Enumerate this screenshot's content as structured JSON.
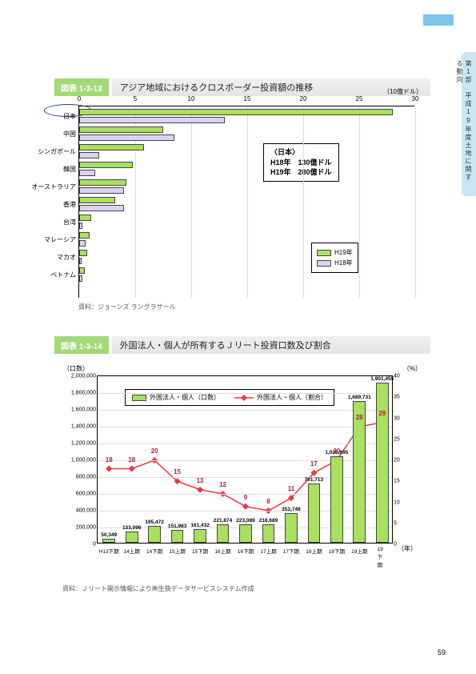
{
  "sidetab": "第１部　平成19年度土地に関する動向",
  "pagenum": "59",
  "sec1": {
    "label": "図表 1-3-13",
    "title": "アジア地域におけるクロスボーダー投資額の推移",
    "units": "（10億ドル）",
    "xmax": 30,
    "xticks": [
      0,
      5,
      10,
      15,
      20,
      25,
      30
    ],
    "categories": [
      "日本",
      "中国",
      "シンガポール",
      "韓国",
      "オーストラリア",
      "香港",
      "台湾",
      "マレーシア",
      "マカオ",
      "ベトナム"
    ],
    "h19": [
      28,
      7.5,
      5.8,
      4.8,
      4.2,
      3.2,
      1.1,
      0.9,
      0.7,
      0.5
    ],
    "h18": [
      13,
      8.5,
      1.8,
      1.4,
      4.0,
      4.0,
      0.3,
      0.6,
      0.2,
      0.3
    ],
    "colors": {
      "h19": "#a8e060",
      "h18": "#d8d4f0"
    },
    "annot": {
      "line1": "〈日本〉",
      "line2": "H18年　130億ドル",
      "line3": "H19年　280億ドル"
    },
    "legend": {
      "h19": "H19年",
      "h18": "H18年"
    },
    "source": "資料：ジョーンズ ラングラサール"
  },
  "sec2": {
    "label": "図表 1-3-14",
    "title": "外国法人・個人が所有するＪリート投資口数及び割合",
    "yl_label": "（口数）",
    "yr_label": "（%）",
    "yl_max": 2000000,
    "yl_ticks": [
      0,
      200000,
      400000,
      600000,
      800000,
      1000000,
      1200000,
      1400000,
      1600000,
      1800000,
      2000000
    ],
    "yl_tick_labels": [
      "0",
      "200,000",
      "400,000",
      "600,000",
      "800,000",
      "1,000,000",
      "1,200,000",
      "1,400,000",
      "1,600,000",
      "1,800,000",
      "2,000,000"
    ],
    "yr_max": 40,
    "yr_ticks": [
      0,
      5,
      10,
      15,
      20,
      25,
      30,
      35,
      40
    ],
    "xlabels": [
      "H13下期",
      "14上期",
      "14下期",
      "15上期",
      "15下期",
      "16上期",
      "16下期",
      "17上期",
      "17下期",
      "18上期",
      "18下期",
      "19上期",
      "19下期"
    ],
    "bars": [
      50349,
      133096,
      195472,
      151983,
      161432,
      221874,
      223089,
      218689,
      353749,
      701713,
      1026695,
      1689731,
      1901455
    ],
    "bar_labels": [
      "50,349",
      "133,096",
      "195,472",
      "151,983",
      "161,432",
      "221,874",
      "223,089",
      "218,689",
      "353,749",
      "701,713",
      "1,026,695",
      "1,689,731",
      "1,901,455"
    ],
    "pct": [
      18,
      18,
      20,
      15,
      13,
      12,
      9,
      8,
      11,
      17,
      20,
      28,
      29
    ],
    "bar_color": "#a8e060",
    "line_color": "#e63946",
    "legend": {
      "bar": "外国法人・個人（口数）",
      "line": "外国法人・個人（割合）"
    },
    "xunit": "（年）",
    "source": "資料：Ｊリート開示情報により㈱生駒データサービスシステム作成"
  }
}
